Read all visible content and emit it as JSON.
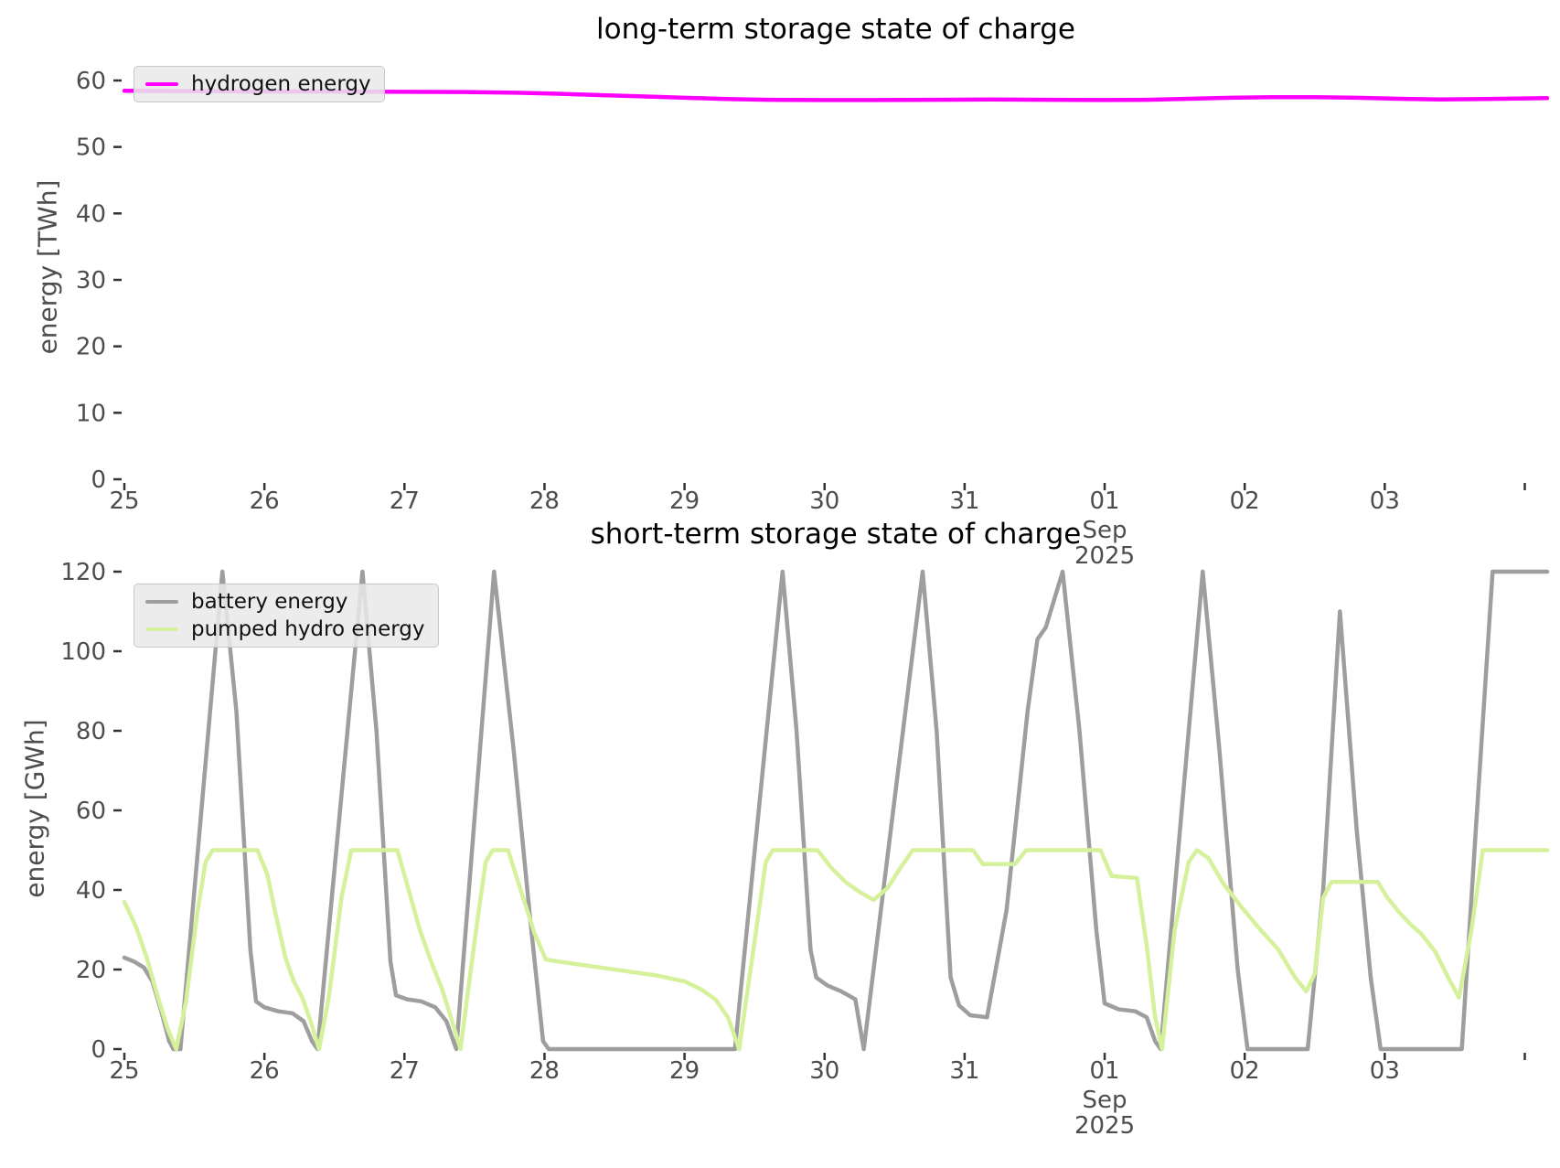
{
  "chart_data": [
    {
      "type": "line",
      "title": "long-term storage state of charge",
      "ylabel": "energy [TWh]",
      "xlabel": "",
      "x_unit": "days since Aug 25 2025 00:00",
      "ylim": [
        0,
        62.5
      ],
      "grid": false,
      "legend_loc": "upper left",
      "yticks": [
        0,
        10,
        20,
        30,
        40,
        50,
        60
      ],
      "xticks": [
        {
          "t": 0,
          "label": "25"
        },
        {
          "t": 1,
          "label": "26"
        },
        {
          "t": 2,
          "label": "27"
        },
        {
          "t": 3,
          "label": "28"
        },
        {
          "t": 4,
          "label": "29"
        },
        {
          "t": 5,
          "label": "30"
        },
        {
          "t": 6,
          "label": "31"
        },
        {
          "t": 7,
          "label": "01",
          "sublabel": [
            "Sep",
            "2025"
          ]
        },
        {
          "t": 8,
          "label": "02"
        },
        {
          "t": 9,
          "label": "03"
        },
        {
          "t": 10,
          "label": ""
        }
      ],
      "series": [
        {
          "name": "hydrogen energy",
          "color": "#ff00ff",
          "points": [
            [
              0,
              58.45
            ],
            [
              0.5,
              58.4
            ],
            [
              1.0,
              58.35
            ],
            [
              1.5,
              58.35
            ],
            [
              2.0,
              58.3
            ],
            [
              2.5,
              58.25
            ],
            [
              2.8,
              58.15
            ],
            [
              3.1,
              58.0
            ],
            [
              3.4,
              57.8
            ],
            [
              3.7,
              57.6
            ],
            [
              4.0,
              57.4
            ],
            [
              4.3,
              57.2
            ],
            [
              4.6,
              57.1
            ],
            [
              5.0,
              57.05
            ],
            [
              5.4,
              57.05
            ],
            [
              5.8,
              57.1
            ],
            [
              6.2,
              57.15
            ],
            [
              6.6,
              57.1
            ],
            [
              7.0,
              57.05
            ],
            [
              7.3,
              57.1
            ],
            [
              7.6,
              57.25
            ],
            [
              7.9,
              57.4
            ],
            [
              8.2,
              57.5
            ],
            [
              8.5,
              57.5
            ],
            [
              8.8,
              57.4
            ],
            [
              9.1,
              57.25
            ],
            [
              9.4,
              57.15
            ],
            [
              9.7,
              57.2
            ],
            [
              10.0,
              57.3
            ],
            [
              10.16,
              57.35
            ]
          ]
        }
      ]
    },
    {
      "type": "line",
      "title": "short-term storage state of charge",
      "ylabel": "energy [GWh]",
      "xlabel": "",
      "x_unit": "days since Aug 25 2025 00:00",
      "ylim": [
        0,
        123
      ],
      "grid": false,
      "legend_loc": "upper left",
      "yticks": [
        0,
        20,
        40,
        60,
        80,
        100,
        120
      ],
      "xticks": [
        {
          "t": 0,
          "label": "25"
        },
        {
          "t": 1,
          "label": "26"
        },
        {
          "t": 2,
          "label": "27"
        },
        {
          "t": 3,
          "label": "28"
        },
        {
          "t": 4,
          "label": "29"
        },
        {
          "t": 5,
          "label": "30"
        },
        {
          "t": 6,
          "label": "31"
        },
        {
          "t": 7,
          "label": "01",
          "sublabel": [
            "Sep",
            "2025"
          ]
        },
        {
          "t": 8,
          "label": "02"
        },
        {
          "t": 9,
          "label": "03"
        },
        {
          "t": 10,
          "label": ""
        }
      ],
      "series": [
        {
          "name": "battery energy",
          "color": "#9e9e9e",
          "points": [
            [
              0,
              23
            ],
            [
              0.07,
              22
            ],
            [
              0.14,
              20.5
            ],
            [
              0.2,
              17
            ],
            [
              0.26,
              10
            ],
            [
              0.32,
              2
            ],
            [
              0.35,
              0
            ],
            [
              0.4,
              0
            ],
            [
              0.7,
              120
            ],
            [
              0.8,
              85
            ],
            [
              0.9,
              25
            ],
            [
              0.94,
              12
            ],
            [
              1.0,
              10.5
            ],
            [
              1.1,
              9.5
            ],
            [
              1.2,
              9
            ],
            [
              1.28,
              7
            ],
            [
              1.34,
              2
            ],
            [
              1.38,
              0
            ],
            [
              1.7,
              120
            ],
            [
              1.8,
              80
            ],
            [
              1.9,
              22
            ],
            [
              1.94,
              13.5
            ],
            [
              2.02,
              12.5
            ],
            [
              2.12,
              12
            ],
            [
              2.22,
              10.5
            ],
            [
              2.3,
              7
            ],
            [
              2.37,
              0
            ],
            [
              2.64,
              120
            ],
            [
              2.78,
              75
            ],
            [
              2.9,
              32
            ],
            [
              2.99,
              2
            ],
            [
              3.03,
              0
            ],
            [
              4.36,
              0
            ],
            [
              4.7,
              120
            ],
            [
              4.8,
              80
            ],
            [
              4.9,
              25
            ],
            [
              4.94,
              18
            ],
            [
              5.02,
              16
            ],
            [
              5.12,
              14.5
            ],
            [
              5.22,
              12.5
            ],
            [
              5.28,
              0
            ],
            [
              5.7,
              120
            ],
            [
              5.8,
              80
            ],
            [
              5.9,
              18
            ],
            [
              5.96,
              11
            ],
            [
              6.04,
              8.5
            ],
            [
              6.16,
              8
            ],
            [
              6.3,
              35
            ],
            [
              6.45,
              85
            ],
            [
              6.52,
              103
            ],
            [
              6.58,
              106
            ],
            [
              6.7,
              120
            ],
            [
              6.82,
              80
            ],
            [
              6.94,
              30
            ],
            [
              7.0,
              11.5
            ],
            [
              7.1,
              10
            ],
            [
              7.22,
              9.5
            ],
            [
              7.3,
              8
            ],
            [
              7.36,
              2
            ],
            [
              7.4,
              0
            ],
            [
              7.7,
              120
            ],
            [
              7.82,
              75
            ],
            [
              7.95,
              20
            ],
            [
              8.02,
              0
            ],
            [
              8.45,
              0
            ],
            [
              8.56,
              40
            ],
            [
              8.68,
              110
            ],
            [
              8.8,
              55
            ],
            [
              8.9,
              18
            ],
            [
              8.97,
              0
            ],
            [
              9.55,
              0
            ],
            [
              9.65,
              55
            ],
            [
              9.77,
              120
            ],
            [
              10.16,
              120
            ]
          ]
        },
        {
          "name": "pumped hydro energy",
          "color": "#d5f19c",
          "points": [
            [
              0,
              37
            ],
            [
              0.08,
              31
            ],
            [
              0.16,
              23
            ],
            [
              0.24,
              13
            ],
            [
              0.31,
              5
            ],
            [
              0.37,
              0
            ],
            [
              0.44,
              12
            ],
            [
              0.52,
              34
            ],
            [
              0.58,
              47
            ],
            [
              0.63,
              50
            ],
            [
              0.95,
              50
            ],
            [
              1.02,
              44
            ],
            [
              1.08,
              34
            ],
            [
              1.15,
              23
            ],
            [
              1.21,
              17
            ],
            [
              1.27,
              13
            ],
            [
              1.33,
              7
            ],
            [
              1.39,
              0
            ],
            [
              1.46,
              13
            ],
            [
              1.55,
              38
            ],
            [
              1.62,
              50
            ],
            [
              1.95,
              50
            ],
            [
              2.03,
              40
            ],
            [
              2.11,
              30
            ],
            [
              2.19,
              22
            ],
            [
              2.27,
              15
            ],
            [
              2.34,
              7
            ],
            [
              2.4,
              0
            ],
            [
              2.5,
              27
            ],
            [
              2.58,
              47
            ],
            [
              2.63,
              50
            ],
            [
              2.74,
              50
            ],
            [
              2.83,
              40
            ],
            [
              2.93,
              29
            ],
            [
              3.01,
              22.5
            ],
            [
              3.2,
              21.5
            ],
            [
              3.5,
              20
            ],
            [
              3.8,
              18.5
            ],
            [
              4.0,
              17
            ],
            [
              4.12,
              15
            ],
            [
              4.22,
              12.5
            ],
            [
              4.31,
              8
            ],
            [
              4.39,
              0
            ],
            [
              4.5,
              27
            ],
            [
              4.58,
              47
            ],
            [
              4.63,
              50
            ],
            [
              4.95,
              50
            ],
            [
              5.05,
              45.5
            ],
            [
              5.15,
              42
            ],
            [
              5.25,
              39.5
            ],
            [
              5.35,
              37.5
            ],
            [
              5.45,
              40.5
            ],
            [
              5.55,
              46
            ],
            [
              5.63,
              50
            ],
            [
              6.06,
              50
            ],
            [
              6.13,
              46.5
            ],
            [
              6.36,
              46.5
            ],
            [
              6.44,
              50
            ],
            [
              6.97,
              50
            ],
            [
              7.05,
              43.5
            ],
            [
              7.23,
              43
            ],
            [
              7.3,
              26
            ],
            [
              7.36,
              8
            ],
            [
              7.41,
              0
            ],
            [
              7.5,
              30
            ],
            [
              7.6,
              47
            ],
            [
              7.66,
              50
            ],
            [
              7.74,
              48
            ],
            [
              7.85,
              41.5
            ],
            [
              7.97,
              36
            ],
            [
              8.1,
              30.5
            ],
            [
              8.24,
              25
            ],
            [
              8.36,
              18
            ],
            [
              8.44,
              14.5
            ],
            [
              8.5,
              19
            ],
            [
              8.56,
              38
            ],
            [
              8.62,
              42
            ],
            [
              8.95,
              42
            ],
            [
              9.02,
              38
            ],
            [
              9.1,
              34.5
            ],
            [
              9.18,
              31.5
            ],
            [
              9.26,
              29
            ],
            [
              9.36,
              24.5
            ],
            [
              9.46,
              17.5
            ],
            [
              9.53,
              13
            ],
            [
              9.62,
              30
            ],
            [
              9.7,
              50
            ],
            [
              10.16,
              50
            ]
          ]
        }
      ]
    }
  ]
}
